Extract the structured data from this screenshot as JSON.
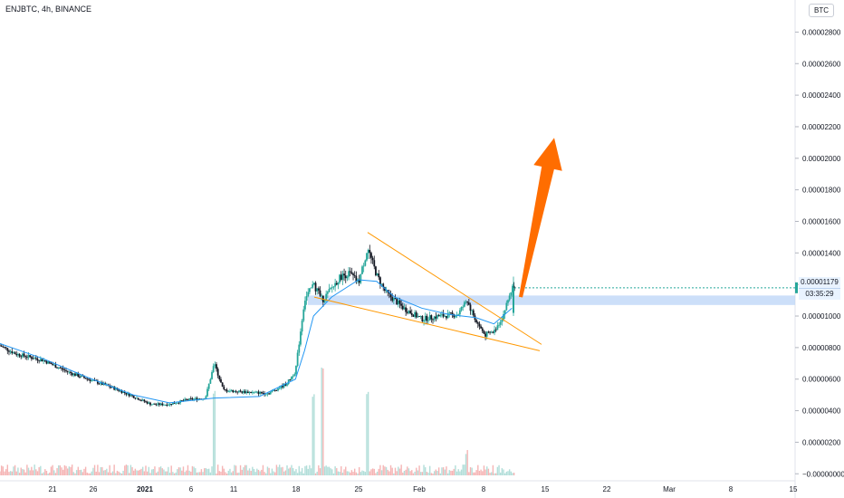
{
  "header": {
    "symbol_label": "ENJBTC, 4h, BINANCE",
    "currency_badge": "BTC"
  },
  "price_labels": {
    "last_price": "0.00001179",
    "countdown": "03:35:29"
  },
  "colors": {
    "up": "#26a69a",
    "down": "#131722",
    "ma_line": "#2196f3",
    "wedge": "#ff9800",
    "zone": "#bbd4f7",
    "arrow": "#ff6d00",
    "volume": "#f2a2a2",
    "volume_up": "#9fd6d0"
  },
  "chart_data": {
    "type": "candlestick",
    "y_axis_labels": [
      "0.00002800",
      "0.00002600",
      "0.00002400",
      "0.00002200",
      "0.00002000",
      "0.00001800",
      "0.00001600",
      "0.00001400",
      "0.00001200",
      "0.00001000",
      "0.00000800",
      "0.00000600",
      "0.00000400",
      "0.00000200",
      "−0.00000000"
    ],
    "ylim": [
      -1e-07,
      2.9e-05
    ],
    "x_axis_labels": [
      "21",
      "26",
      "2021",
      "6",
      "11",
      "18",
      "25",
      "Feb",
      "8",
      "15",
      "22",
      "Mar",
      "8",
      "15"
    ],
    "price_path": [
      [
        "Dec 16",
        8.2e-06
      ],
      [
        "Dec 18",
        7.6e-06
      ],
      [
        "Dec 21",
        7.2e-06
      ],
      [
        "Dec 24",
        6.4e-06
      ],
      [
        "Dec 26",
        6e-06
      ],
      [
        "Dec 29",
        5.4e-06
      ],
      [
        "Dec 31",
        4.9e-06
      ],
      [
        "Jan 2",
        4.4e-06
      ],
      [
        "Jan 4",
        4.4e-06
      ],
      [
        "Jan 6",
        4.7e-06
      ],
      [
        "Jan 8",
        4.8e-06
      ],
      [
        "Jan 9",
        7e-06
      ],
      [
        "Jan 10",
        5.3e-06
      ],
      [
        "Jan 12",
        5.2e-06
      ],
      [
        "Jan 15",
        5.1e-06
      ],
      [
        "Jan 17",
        5.7e-06
      ],
      [
        "Jan 18",
        6.5e-06
      ],
      [
        "Jan 19",
        1.1e-05
      ],
      [
        "Jan 20",
        1.2e-05
      ],
      [
        "Jan 21",
        1.1e-05
      ],
      [
        "Jan 23",
        1.25e-05
      ],
      [
        "Jan 24",
        1.27e-05
      ],
      [
        "Jan 25",
        1.21e-05
      ],
      [
        "Jan 26",
        1.43e-05
      ],
      [
        "Jan 27",
        1.26e-05
      ],
      [
        "Jan 28",
        1.15e-05
      ],
      [
        "Jan 30",
        1.05e-05
      ],
      [
        "Feb 1",
        9.8e-06
      ],
      [
        "Feb 3",
        1e-05
      ],
      [
        "Feb 5",
        1.01e-05
      ],
      [
        "Feb 6",
        1.1e-05
      ],
      [
        "Feb 7",
        9.7e-06
      ],
      [
        "Feb 8",
        8.8e-06
      ],
      [
        "Feb 9",
        9e-06
      ],
      [
        "Feb 10",
        1e-05
      ],
      [
        "Feb 11",
        1.179e-05
      ]
    ],
    "ma_path": [
      [
        "Dec 16",
        8.3e-06
      ],
      [
        "Dec 21",
        7.3e-06
      ],
      [
        "Dec 26",
        6.1e-06
      ],
      [
        "Dec 31",
        5e-06
      ],
      [
        "Jan 4",
        4.5e-06
      ],
      [
        "Jan 9",
        4.8e-06
      ],
      [
        "Jan 14",
        4.9e-06
      ],
      [
        "Jan 18",
        6e-06
      ],
      [
        "Jan 19",
        7.8e-06
      ],
      [
        "Jan 20",
        1e-05
      ],
      [
        "Jan 22",
        1.12e-05
      ],
      [
        "Jan 25",
        1.23e-05
      ],
      [
        "Jan 27",
        1.22e-05
      ],
      [
        "Jan 29",
        1.12e-05
      ],
      [
        "Feb 1",
        1.05e-05
      ],
      [
        "Feb 4",
        1.01e-05
      ],
      [
        "Feb 7",
        9.9e-06
      ],
      [
        "Feb 9",
        9.5e-06
      ],
      [
        "Feb 11",
        1.05e-05
      ]
    ],
    "wedge": {
      "upper": [
        [
          "Jan 26",
          1.53e-05
        ],
        [
          "Feb 14",
          8.2e-06
        ]
      ],
      "lower": [
        [
          "Jan 19",
          1.12e-05
        ],
        [
          "Feb 14",
          7.8e-06
        ]
      ]
    },
    "support_zone": {
      "from": 1.07e-05,
      "to": 1.13e-05
    },
    "target_arrow": {
      "from": [
        "Feb 11",
        1.19e-05
      ],
      "to": [
        "Feb 17",
        2.12e-05
      ]
    },
    "volume_scale_note": "relative",
    "volume_spikes": [
      [
        "Jan 9",
        1.3e-06
      ],
      [
        "Jan 20",
        1.3e-06
      ],
      [
        "Jan 21",
        1.7e-06
      ],
      [
        "Jan 26",
        1.3e-06
      ],
      [
        "Feb 6",
        3.5e-07
      ]
    ]
  }
}
